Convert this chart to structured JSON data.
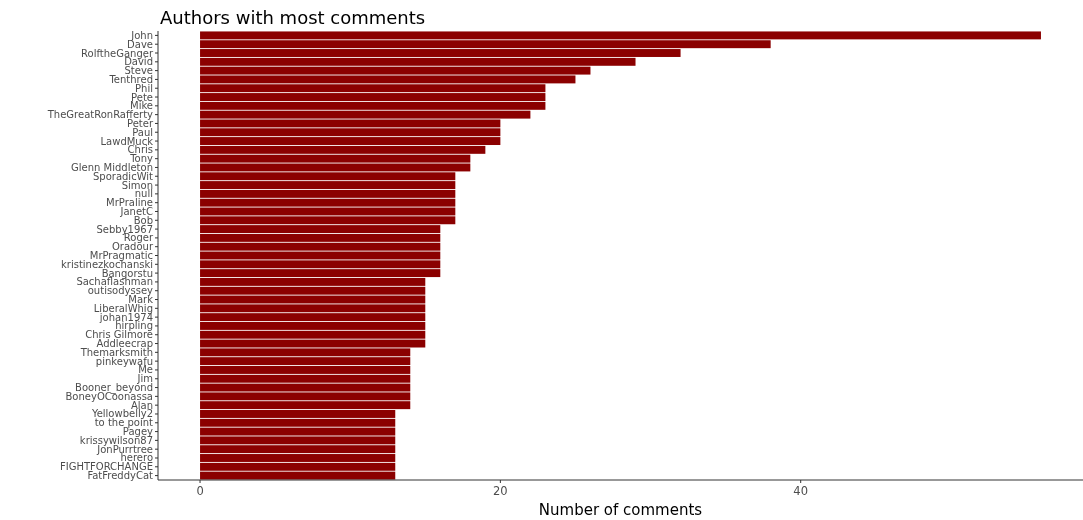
{
  "chart_data": {
    "type": "bar",
    "orientation": "horizontal",
    "title": "Authors with most comments",
    "xlabel": "Number of comments",
    "categories": [
      "John",
      "Dave",
      "RolftheGanger",
      "David",
      "Steve",
      "Tenthred",
      "Phil",
      "Pete",
      "Mike",
      "TheGreatRonRafferty",
      "Peter",
      "Paul",
      "LawdMuck",
      "Chris",
      "Tony",
      "Glenn Middleton",
      "SporadicWit",
      "Simon",
      "null",
      "MrPraline",
      "JanetC",
      "Bob",
      "Sebby1967",
      "Roger",
      "Oradour",
      "MrPragmatic",
      "kristinezkochanski",
      "Bangorstu",
      "Sachaflashman",
      "outisodyssey",
      "Mark",
      "LiberalWhig",
      "johan1974",
      "hirpling",
      "Chris Gilmore",
      "Addleecrap",
      "Themarksmith",
      "pinkeywafu",
      "Me",
      "Jim",
      "Booner_beyond",
      "BoneyOCoonassa",
      "Alan",
      "Yellowbelly2",
      "to the point",
      "Pagey",
      "krissywilson87",
      "JonPurrtree",
      "herero",
      "FIGHTFORCHANGE",
      "FatFreddyCat"
    ],
    "values": [
      56,
      38,
      32,
      29,
      26,
      25,
      23,
      23,
      23,
      22,
      20,
      20,
      20,
      19,
      18,
      18,
      17,
      17,
      17,
      17,
      17,
      17,
      16,
      16,
      16,
      16,
      16,
      16,
      15,
      15,
      15,
      15,
      15,
      15,
      15,
      15,
      14,
      14,
      14,
      14,
      14,
      14,
      14,
      13,
      13,
      13,
      13,
      13,
      13,
      13,
      13
    ],
    "color": "#8b0000",
    "xlim": [
      -2.8,
      58.8
    ],
    "xticks": [
      0,
      20,
      40
    ],
    "grid": false
  }
}
